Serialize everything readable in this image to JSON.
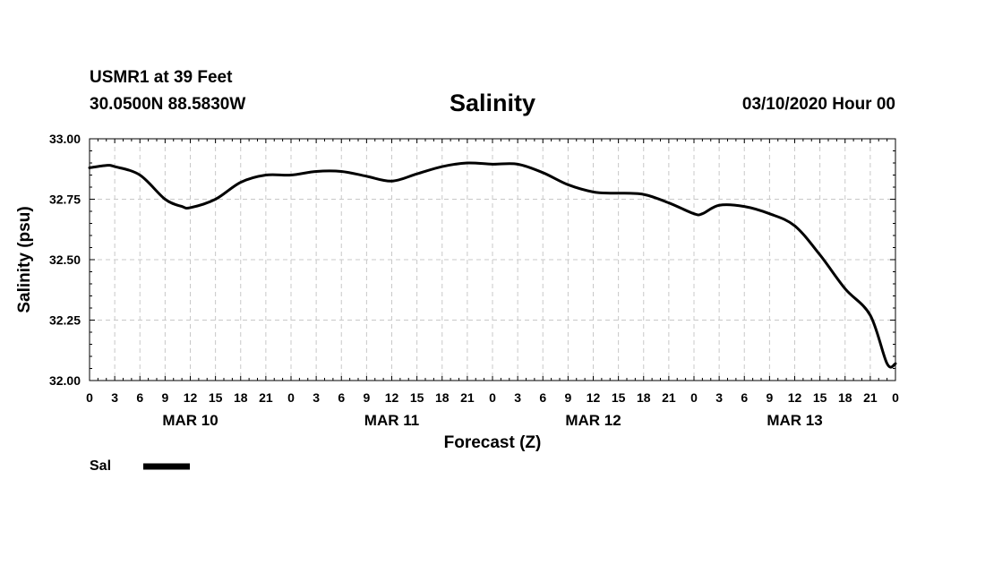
{
  "header": {
    "station": "USMR1 at 39 Feet",
    "location": "30.0500N 88.5830W",
    "timestamp": "03/10/2020 Hour 00"
  },
  "chart_data": {
    "type": "line",
    "title": "Salinity",
    "xlabel": "Forecast (Z)",
    "ylabel": "Salinity (psu)",
    "ylim": [
      32.0,
      33.0
    ],
    "yticks": [
      "32.00",
      "32.25",
      "32.50",
      "32.75",
      "33.00"
    ],
    "x_unit": "forecast hour",
    "xlim": [
      0,
      96
    ],
    "xtick_labels": [
      "0",
      "3",
      "6",
      "9",
      "12",
      "15",
      "18",
      "21",
      "0",
      "3",
      "6",
      "9",
      "12",
      "15",
      "18",
      "21",
      "0",
      "3",
      "6",
      "9",
      "12",
      "15",
      "18",
      "21",
      "0",
      "3",
      "6",
      "9",
      "12",
      "15",
      "18",
      "21",
      "0"
    ],
    "day_labels": [
      {
        "label": "MAR 10",
        "at_hour": 12
      },
      {
        "label": "MAR 11",
        "at_hour": 36
      },
      {
        "label": "MAR 12",
        "at_hour": 60
      },
      {
        "label": "MAR 13",
        "at_hour": 84
      }
    ],
    "grid": true,
    "series": [
      {
        "name": "Sal",
        "color": "#000000",
        "x": [
          0,
          2,
          3,
          6,
          9,
          11,
          12,
          15,
          18,
          21,
          24,
          27,
          30,
          33,
          36,
          39,
          42,
          45,
          48,
          51,
          54,
          57,
          60,
          62,
          63,
          66,
          69,
          72,
          73,
          75,
          78,
          81,
          84,
          87,
          90,
          93,
          95,
          96
        ],
        "y": [
          32.88,
          32.89,
          32.885,
          32.85,
          32.75,
          32.72,
          32.715,
          32.75,
          32.82,
          32.85,
          32.85,
          32.865,
          32.865,
          32.845,
          32.825,
          32.855,
          32.885,
          32.9,
          32.895,
          32.895,
          32.86,
          32.81,
          32.78,
          32.775,
          32.775,
          32.77,
          32.735,
          32.69,
          32.69,
          32.725,
          32.72,
          32.69,
          32.64,
          32.52,
          32.38,
          32.27,
          32.07,
          32.07
        ]
      }
    ],
    "legend": {
      "position": "bottom-left",
      "entries": [
        "Sal"
      ]
    }
  }
}
